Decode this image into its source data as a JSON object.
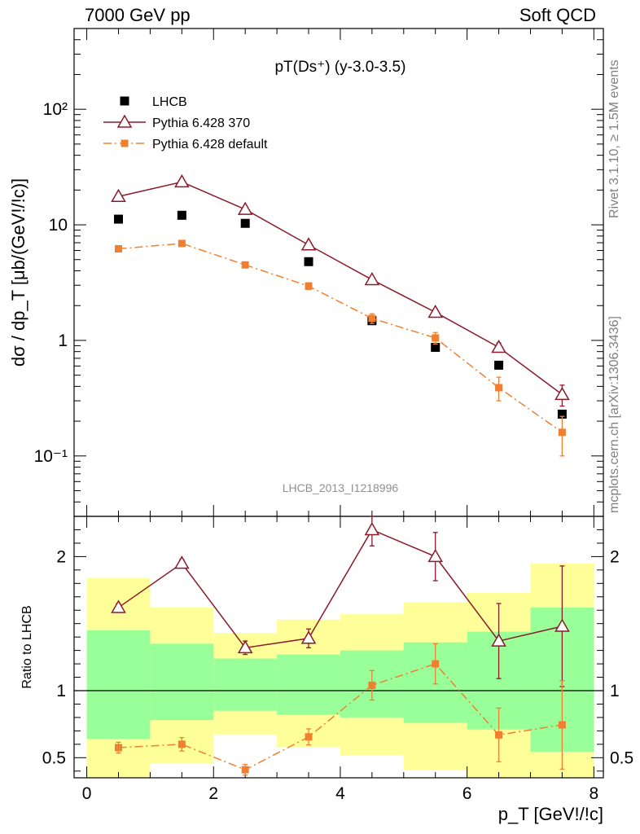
{
  "header": {
    "left": "7000 GeV pp",
    "right": "Soft QCD"
  },
  "side_labels": {
    "rivet": "Rivet 3.1.10, ≥ 1.5M events",
    "mcplots": "mcplots.cern.ch [arXiv:1306.3436]"
  },
  "chart_data": [
    {
      "type": "scatter",
      "title": "pT(Ds⁺) (y-3.0-3.5)",
      "ylabel": "dσ / dp_T [μb/(GeV!/!c)]",
      "xlim": [
        -0.2,
        8.15
      ],
      "ylim": [
        0.03,
        500
      ],
      "yscale": "log",
      "yticklabels": [
        "10⁻¹",
        "1",
        "10",
        "10²"
      ],
      "watermark": "LHCB_2013_I1218996",
      "legend_position": "top-left",
      "x": [
        0.5,
        1.5,
        2.5,
        3.5,
        4.5,
        5.5,
        6.5,
        7.5
      ],
      "series": [
        {
          "name": "LHCB",
          "marker": "filled-square",
          "color": "#000000",
          "values": [
            11.2,
            12.1,
            10.3,
            4.8,
            1.48,
            0.87,
            0.61,
            0.23
          ]
        },
        {
          "name": "Pythia 6.428 370",
          "marker": "open-triangle",
          "line": "solid",
          "color": "#8b1a2a",
          "values": [
            17.6,
            23.5,
            13.6,
            6.7,
            3.35,
            1.75,
            0.87,
            0.34
          ],
          "err": [
            0.6,
            0.8,
            0.5,
            0.3,
            0.15,
            0.12,
            0.08,
            0.07
          ]
        },
        {
          "name": "Pythia 6.428 default",
          "marker": "filled-square-small",
          "line": "dashdot",
          "color": "#f08030",
          "values": [
            6.2,
            6.9,
            4.5,
            2.95,
            1.55,
            1.05,
            0.39,
            0.16
          ],
          "err": [
            0.25,
            0.3,
            0.2,
            0.2,
            0.15,
            0.12,
            0.09,
            0.06
          ]
        }
      ]
    },
    {
      "type": "scatter",
      "xlabel": "p_T [GeV!/!c]",
      "ylabel": "Ratio to LHCB",
      "xlim": [
        -0.2,
        8.15
      ],
      "ylim": [
        0.35,
        2.3
      ],
      "xticks": [
        0,
        2,
        4,
        6,
        8
      ],
      "yticks": [
        0.5,
        1,
        2
      ],
      "reference_line": 1,
      "bins": [
        [
          0,
          1
        ],
        [
          1,
          2
        ],
        [
          2,
          3
        ],
        [
          3,
          4
        ],
        [
          4,
          5
        ],
        [
          5,
          6
        ],
        [
          6,
          7
        ],
        [
          7,
          8
        ]
      ],
      "bands": {
        "inner": {
          "color": "#99ff99",
          "lo": [
            0.64,
            0.78,
            0.85,
            0.82,
            0.8,
            0.76,
            0.71,
            0.545
          ],
          "hi": [
            1.45,
            1.35,
            1.24,
            1.27,
            1.3,
            1.36,
            1.44,
            1.62
          ]
        },
        "outer": {
          "color": "#ffff99",
          "lo": [
            0.33,
            0.46,
            0.67,
            0.58,
            0.52,
            0.41,
            0.33,
            0.33
          ],
          "hi": [
            1.84,
            1.62,
            1.43,
            1.53,
            1.57,
            1.66,
            1.73,
            1.95
          ]
        }
      },
      "x": [
        0.5,
        1.5,
        2.5,
        3.5,
        4.5,
        5.5,
        6.5,
        7.5
      ],
      "series": [
        {
          "name": "Pythia 6.428 370",
          "color": "#8b1a2a",
          "values": [
            1.62,
            1.95,
            1.32,
            1.39,
            2.2,
            2.0,
            1.37,
            1.48
          ],
          "err": [
            0.03,
            0.03,
            0.05,
            0.07,
            0.12,
            0.18,
            0.28,
            0.45
          ]
        },
        {
          "name": "Pythia 6.428 default",
          "color": "#f08030",
          "values": [
            0.575,
            0.6,
            0.41,
            0.655,
            1.04,
            1.2,
            0.67,
            0.745
          ],
          "err": [
            0.04,
            0.05,
            0.04,
            0.06,
            0.11,
            0.15,
            0.2,
            0.33
          ]
        }
      ]
    }
  ]
}
